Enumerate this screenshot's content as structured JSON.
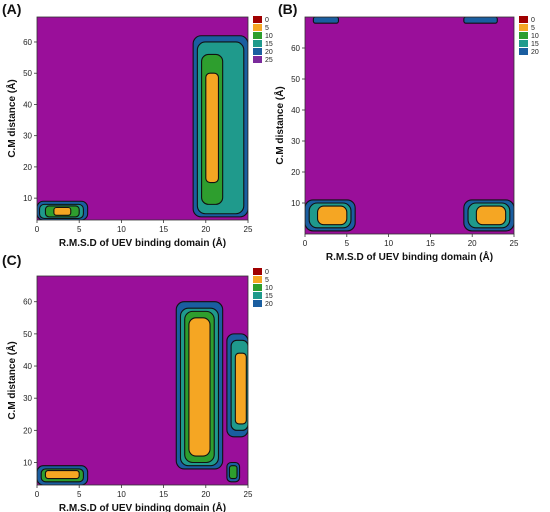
{
  "palette": {
    "background": "#9a0f9a",
    "contour_line": "#111111"
  },
  "chart_data": [
    {
      "type": "heatmap",
      "panel_label": "(A)",
      "xlabel": "R.M.S.D of UEV binding domain (Å)",
      "ylabel": "C.M distance (Å)",
      "xlim": [
        0,
        25
      ],
      "ylim": [
        3,
        68
      ],
      "x_ticks": [
        0,
        5,
        10,
        15,
        20,
        25
      ],
      "y_ticks": [
        10,
        20,
        30,
        40,
        50,
        60
      ],
      "legend": {
        "values": [
          "0",
          "5",
          "10",
          "15",
          "20",
          "25"
        ],
        "colors": [
          "#a00000",
          "#f5a623",
          "#2e9e2e",
          "#1f9a8c",
          "#1a5ea0",
          "#7b2a9c"
        ]
      },
      "regions": [
        {
          "level": 1,
          "x": [
            0,
            6
          ],
          "y": [
            3,
            9
          ]
        },
        {
          "level": 2,
          "x": [
            0.3,
            5.5
          ],
          "y": [
            3.5,
            8
          ]
        },
        {
          "level": 3,
          "x": [
            1,
            5
          ],
          "y": [
            4,
            7.5
          ]
        },
        {
          "level": 4,
          "x": [
            2,
            4
          ],
          "y": [
            4.5,
            7
          ]
        },
        {
          "level": 1,
          "x": [
            18.5,
            25
          ],
          "y": [
            4,
            62
          ]
        },
        {
          "level": 2,
          "x": [
            19,
            24.5
          ],
          "y": [
            5,
            60
          ]
        },
        {
          "level": 3,
          "x": [
            19.5,
            22
          ],
          "y": [
            8,
            56
          ]
        },
        {
          "level": 4,
          "x": [
            20,
            21.5
          ],
          "y": [
            15,
            50
          ]
        }
      ]
    },
    {
      "type": "heatmap",
      "panel_label": "(B)",
      "xlabel": "R.M.S.D of UEV binding domain (Å)",
      "ylabel": "C.M distance (Å)",
      "xlim": [
        0,
        25
      ],
      "ylim": [
        0,
        70
      ],
      "x_ticks": [
        0,
        5,
        10,
        15,
        20,
        25
      ],
      "y_ticks": [
        10,
        20,
        30,
        40,
        50,
        60
      ],
      "legend": {
        "values": [
          "0",
          "5",
          "10",
          "15",
          "20"
        ],
        "colors": [
          "#a00000",
          "#f5a623",
          "#2e9e2e",
          "#1f9a8c",
          "#1a5ea0"
        ]
      },
      "regions": [
        {
          "level": 1,
          "x": [
            0,
            6
          ],
          "y": [
            1,
            11
          ]
        },
        {
          "level": 2,
          "x": [
            0.5,
            5.5
          ],
          "y": [
            2,
            10
          ]
        },
        {
          "level": 4,
          "x": [
            1.5,
            5
          ],
          "y": [
            3,
            9
          ]
        },
        {
          "level": 1,
          "x": [
            19,
            25
          ],
          "y": [
            1,
            11
          ]
        },
        {
          "level": 2,
          "x": [
            19.5,
            24.5
          ],
          "y": [
            2,
            10
          ]
        },
        {
          "level": 4,
          "x": [
            20.5,
            24
          ],
          "y": [
            3,
            9
          ]
        },
        {
          "level": 1,
          "x": [
            1,
            4
          ],
          "y": [
            68,
            70
          ]
        },
        {
          "level": 1,
          "x": [
            19,
            23
          ],
          "y": [
            68,
            70
          ]
        }
      ]
    },
    {
      "type": "heatmap",
      "panel_label": "(C)",
      "xlabel": "R.M.S.D of UEV binding domain (Å)",
      "ylabel": "C.M distance (Å)",
      "xlim": [
        0,
        25
      ],
      "ylim": [
        3,
        68
      ],
      "x_ticks": [
        0,
        5,
        10,
        15,
        20,
        25
      ],
      "y_ticks": [
        10,
        20,
        30,
        40,
        50,
        60
      ],
      "legend": {
        "values": [
          "0",
          "5",
          "10",
          "15",
          "20"
        ],
        "colors": [
          "#a00000",
          "#f5a623",
          "#2e9e2e",
          "#1f9a8c",
          "#1a5ea0"
        ]
      },
      "regions": [
        {
          "level": 1,
          "x": [
            0,
            6
          ],
          "y": [
            3,
            9
          ]
        },
        {
          "level": 3,
          "x": [
            0.5,
            5.5
          ],
          "y": [
            4,
            8
          ]
        },
        {
          "level": 4,
          "x": [
            1,
            5
          ],
          "y": [
            5,
            7.5
          ]
        },
        {
          "level": 1,
          "x": [
            16.5,
            22
          ],
          "y": [
            8,
            60
          ]
        },
        {
          "level": 2,
          "x": [
            17,
            21.5
          ],
          "y": [
            9,
            58
          ]
        },
        {
          "level": 3,
          "x": [
            17.5,
            21
          ],
          "y": [
            10,
            57
          ]
        },
        {
          "level": 4,
          "x": [
            18,
            20.5
          ],
          "y": [
            12,
            55
          ]
        },
        {
          "level": 1,
          "x": [
            22.5,
            25
          ],
          "y": [
            18,
            50
          ]
        },
        {
          "level": 2,
          "x": [
            23,
            25
          ],
          "y": [
            20,
            48
          ]
        },
        {
          "level": 4,
          "x": [
            23.5,
            24.8
          ],
          "y": [
            22,
            44
          ]
        },
        {
          "level": 1,
          "x": [
            22.5,
            24
          ],
          "y": [
            4,
            10
          ]
        },
        {
          "level": 3,
          "x": [
            22.8,
            23.7
          ],
          "y": [
            5,
            9
          ]
        }
      ]
    }
  ]
}
